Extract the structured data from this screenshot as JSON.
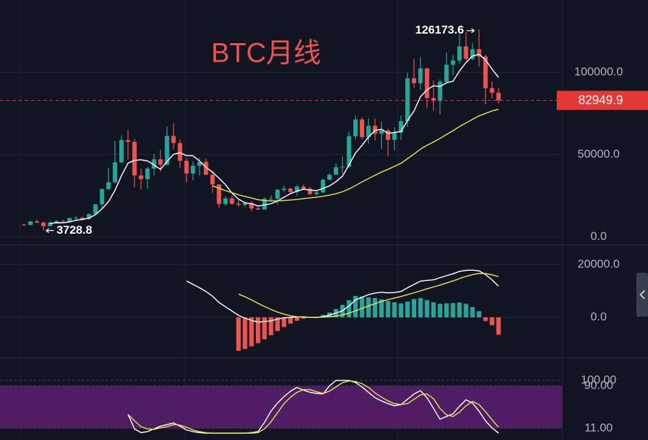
{
  "chart_data": [
    {
      "type": "candlestick",
      "title": "BTC月线",
      "up_color": "#26a69a",
      "down_color": "#ef5350",
      "open": [
        7550,
        7200,
        9350,
        8600,
        6440,
        8620,
        9450,
        9140,
        11350,
        11660,
        10780,
        13800,
        19700,
        28990,
        33140,
        45240,
        58800,
        57700,
        37300,
        35040,
        41460,
        47100,
        43800,
        61300,
        57000,
        46200,
        38500,
        43200,
        45500,
        37650,
        31800,
        19900,
        23300,
        20050,
        19420,
        20500,
        17160,
        16540,
        23130,
        23150,
        28480,
        29250,
        27220,
        30480,
        29230,
        25940,
        26960,
        34660,
        37720,
        42280,
        42580,
        61130,
        71330,
        60640,
        67490,
        62680,
        64620,
        58970,
        63330,
        70290,
        96400,
        93430,
        102400,
        84350,
        82550,
        94200,
        104600,
        107150,
        115750,
        108250,
        114050,
        109600,
        90400,
        87600
      ],
      "high": [
        7750,
        9580,
        10500,
        9200,
        9470,
        10080,
        10400,
        11450,
        12470,
        12060,
        14100,
        19860,
        29300,
        41950,
        58350,
        61780,
        64850,
        59600,
        41330,
        42400,
        50500,
        52900,
        67000,
        69000,
        59100,
        48000,
        45800,
        48200,
        47450,
        40000,
        31980,
        24670,
        25200,
        22800,
        21100,
        21470,
        18400,
        23950,
        25250,
        29200,
        31000,
        29850,
        31390,
        31800,
        30200,
        27480,
        35200,
        38450,
        44700,
        48970,
        64000,
        73800,
        72800,
        71950,
        71950,
        70000,
        65600,
        66500,
        73600,
        99650,
        108350,
        109350,
        102750,
        95000,
        95750,
        111950,
        110400,
        123200,
        124450,
        117900,
        126173.6,
        110600,
        94600,
        90500
      ],
      "low": [
        6430,
        6850,
        8450,
        3728.8,
        6150,
        8100,
        8900,
        8950,
        10520,
        9880,
        10380,
        13200,
        17600,
        28130,
        32400,
        44950,
        47000,
        30000,
        28800,
        29300,
        37300,
        39600,
        43300,
        53250,
        42000,
        32900,
        34300,
        37150,
        37600,
        26700,
        17600,
        18800,
        19500,
        18150,
        18200,
        15480,
        16250,
        16500,
        21350,
        19550,
        26950,
        25800,
        24800,
        28850,
        25150,
        24900,
        26550,
        34100,
        37600,
        38550,
        41900,
        59000,
        59150,
        56550,
        58400,
        53500,
        49000,
        52550,
        58900,
        66800,
        90500,
        89200,
        78200,
        76600,
        74400,
        93300,
        98200,
        105100,
        107300,
        107250,
        103500,
        80600,
        84400,
        81000
      ],
      "close": [
        7200,
        9350,
        8600,
        6440,
        8620,
        9450,
        9140,
        11350,
        11660,
        10780,
        13800,
        19700,
        28990,
        33140,
        45240,
        58800,
        57700,
        37300,
        35040,
        41460,
        47100,
        43800,
        61300,
        57000,
        46200,
        38500,
        43200,
        45500,
        37650,
        31800,
        19900,
        23300,
        20050,
        19420,
        20500,
        17160,
        16540,
        23130,
        23150,
        28480,
        29250,
        27220,
        30480,
        29230,
        25940,
        26960,
        34660,
        37720,
        42280,
        42580,
        61130,
        71330,
        60640,
        67490,
        62680,
        64620,
        58970,
        63330,
        70290,
        96400,
        93430,
        102400,
        84350,
        82550,
        94200,
        104600,
        107150,
        115750,
        108250,
        114050,
        109600,
        90400,
        87600,
        82949.9
      ],
      "series": [
        {
          "color": "#ffffff",
          "values": [
            null,
            null,
            null,
            null,
            8042,
            8492,
            8450,
            9000,
            10044,
            10476,
            11346,
            13458,
            16986,
            21282,
            28174,
            37174,
            44774,
            46436,
            46816,
            46060,
            43720,
            40940,
            45740,
            50132,
            51080,
            49360,
            49240,
            46080,
            42210,
            39330,
            35610,
            31630,
            26540,
            22894,
            20634,
            20086,
            18734,
            19350,
            20096,
            21692,
            24110,
            26246,
            27716,
            28932,
            28424,
            27966,
            29454,
            30902,
            33512,
            36840,
            43674,
            51008,
            55592,
            60634,
            64654,
            65352,
            62880,
            63418,
            63978,
            70722,
            76484,
            85170,
            89374,
            91826,
            91386,
            93620,
            94570,
            100850,
            105990,
            109960,
            110960,
            107610,
            101980,
            96920
          ]
        },
        {
          "color": "#e8e04a",
          "values": [
            null,
            null,
            null,
            null,
            null,
            null,
            null,
            null,
            null,
            null,
            null,
            null,
            null,
            null,
            null,
            null,
            null,
            null,
            null,
            null,
            null,
            null,
            null,
            null,
            null,
            null,
            null,
            null,
            null,
            31000,
            29500,
            28000,
            26800,
            25500,
            24500,
            23500,
            22500,
            22000,
            21800,
            21800,
            22000,
            22300,
            22700,
            23200,
            23600,
            24000,
            24600,
            25300,
            26200,
            27400,
            29000,
            31200,
            33300,
            35400,
            37400,
            39300,
            41000,
            42800,
            44700,
            47500,
            50300,
            53300,
            55600,
            57600,
            59800,
            62200,
            64500,
            67000,
            69200,
            71400,
            73500,
            75000,
            76500,
            77500
          ]
        }
      ],
      "ylim": [
        -4000,
        144000
      ],
      "yticks": [
        {
          "value": 0,
          "label": "0.0"
        },
        {
          "value": 50000,
          "label": "50000.0"
        },
        {
          "value": 100000,
          "label": "100000.0"
        }
      ],
      "grid": true,
      "price_line_color": "#e53935"
    },
    {
      "type": "bar",
      "up_color": "#26a69a",
      "down_color": "#ef5350",
      "values": [
        null,
        null,
        null,
        null,
        null,
        null,
        null,
        null,
        null,
        null,
        null,
        null,
        null,
        null,
        null,
        null,
        null,
        null,
        null,
        null,
        null,
        null,
        null,
        null,
        null,
        null,
        null,
        null,
        null,
        null,
        null,
        null,
        null,
        -12700,
        -12000,
        -11000,
        -9800,
        -8300,
        -6800,
        -5200,
        -3700,
        -2400,
        -1300,
        -500,
        -100,
        200,
        900,
        1800,
        3100,
        4700,
        6500,
        8100,
        7900,
        7600,
        7300,
        6800,
        6200,
        5700,
        5300,
        6000,
        6900,
        7300,
        6500,
        5700,
        5100,
        5300,
        5400,
        5600,
        5100,
        3900,
        2300,
        -1400,
        -3000,
        -6600
      ],
      "series": [
        {
          "color": "#ffffff",
          "values": [
            null,
            null,
            null,
            null,
            null,
            null,
            null,
            null,
            null,
            null,
            null,
            null,
            null,
            null,
            null,
            null,
            null,
            null,
            null,
            null,
            null,
            null,
            null,
            null,
            null,
            13800,
            12500,
            11200,
            9800,
            8000,
            5600,
            4000,
            2400,
            700,
            -300,
            -1200,
            -1800,
            -1600,
            -1300,
            -700,
            -200,
            0,
            100,
            200,
            0,
            -100,
            300,
            800,
            1600,
            2500,
            4300,
            6600,
            7600,
            8600,
            9200,
            9500,
            9300,
            9400,
            9800,
            11200,
            12500,
            13700,
            14000,
            14200,
            15000,
            15800,
            16500,
            17400,
            17800,
            17900,
            17600,
            16200,
            14200,
            11800
          ]
        },
        {
          "color": "#e8e04a",
          "values": [
            null,
            null,
            null,
            null,
            null,
            null,
            null,
            null,
            null,
            null,
            null,
            null,
            null,
            null,
            null,
            null,
            null,
            null,
            null,
            null,
            null,
            null,
            null,
            null,
            null,
            null,
            null,
            null,
            null,
            null,
            null,
            null,
            null,
            8800,
            7800,
            6600,
            5300,
            4100,
            3000,
            2000,
            1200,
            600,
            200,
            50,
            0,
            0,
            50,
            200,
            500,
            900,
            1600,
            2500,
            3400,
            4300,
            5200,
            6000,
            6700,
            7300,
            7900,
            8600,
            9300,
            10000,
            10800,
            11500,
            12200,
            13000,
            13800,
            14700,
            15500,
            16200,
            16600,
            16600,
            16100,
            15400
          ]
        }
      ],
      "ylim": [
        -14800,
        26750
      ],
      "yticks": [
        {
          "value": 0,
          "label": "0.0"
        },
        {
          "value": 20000,
          "label": "20000.0"
        }
      ],
      "grid": true
    },
    {
      "type": "line",
      "series": [
        {
          "color": "#ffffff",
          "values": [
            null,
            null,
            null,
            null,
            null,
            null,
            null,
            null,
            null,
            null,
            null,
            null,
            null,
            null,
            null,
            null,
            37,
            10,
            3,
            5,
            10,
            15,
            18,
            21,
            15,
            8,
            5,
            3,
            2,
            2,
            2,
            2,
            2,
            2,
            2,
            3,
            5,
            22,
            43,
            58,
            70,
            80,
            87,
            82,
            78,
            76,
            75,
            90,
            100,
            100,
            100,
            96,
            88,
            78,
            68,
            62,
            57,
            53,
            55,
            65,
            75,
            81,
            68,
            48,
            28,
            33,
            38,
            52,
            64,
            58,
            43,
            25,
            12,
            2
          ]
        },
        {
          "color": "#e8e04a",
          "values": [
            null,
            null,
            null,
            null,
            null,
            null,
            null,
            null,
            null,
            null,
            null,
            null,
            null,
            null,
            null,
            null,
            37,
            25,
            14,
            10,
            9,
            12,
            14,
            18,
            17,
            13,
            8,
            5,
            3,
            2,
            2,
            2,
            2,
            2,
            2,
            2,
            3,
            10,
            23,
            40,
            57,
            69,
            78,
            83,
            83,
            79,
            76,
            80,
            88,
            96,
            99,
            98,
            94,
            87,
            77,
            69,
            62,
            57,
            55,
            57,
            65,
            73,
            75,
            66,
            48,
            36,
            33,
            41,
            53,
            61,
            55,
            42,
            27,
            13
          ]
        }
      ],
      "band": [
        11,
        90
      ],
      "band_color": "#5a1f6e",
      "ylim": [
        -10.7,
        138.4
      ],
      "yticks": [
        {
          "value": 100,
          "label": "100.00"
        },
        {
          "value": 90,
          "label": "90.00"
        },
        {
          "value": 11,
          "label": "11.00"
        }
      ],
      "grid": true
    }
  ]
}
